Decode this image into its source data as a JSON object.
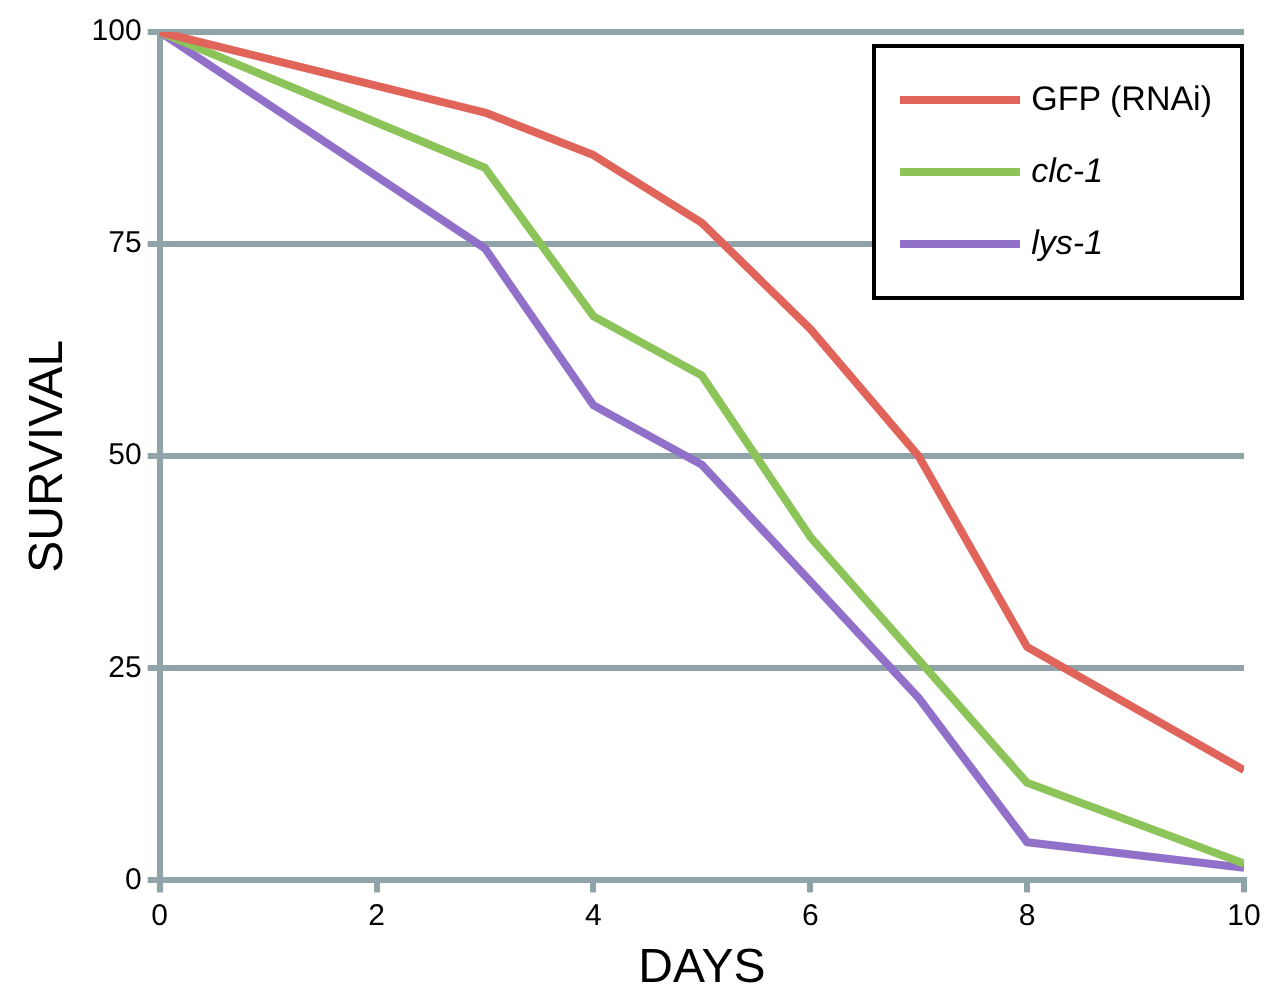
{
  "chart_data": {
    "type": "line",
    "xlabel": "DAYS",
    "ylabel": "SURVIVAL",
    "xlim": [
      0,
      10
    ],
    "xticks": [
      0,
      2,
      4,
      6,
      8,
      10
    ],
    "ylim": [
      0,
      100
    ],
    "yticks": [
      0,
      25,
      50,
      75,
      100
    ],
    "grid": "y",
    "legend": "top right",
    "marker": "none",
    "line_style": "solid",
    "series": [
      {
        "name": "GFP (RNAi)",
        "color": "#e0645a",
        "x": [
          0,
          3,
          4,
          5,
          6,
          7,
          8,
          10
        ],
        "values": [
          100,
          90.5,
          85.5,
          77.5,
          65,
          50,
          27.5,
          13
        ]
      },
      {
        "name": "clc-1",
        "color": "#8cc45a",
        "x": [
          0,
          3,
          4,
          5,
          6,
          8,
          10
        ],
        "values": [
          100,
          84,
          66.5,
          59.5,
          40.5,
          11.5,
          2
        ]
      },
      {
        "name": "lys-1",
        "color": "#9070c8",
        "x": [
          0,
          3,
          4,
          5,
          7,
          8,
          10
        ],
        "values": [
          100,
          74.5,
          56,
          49,
          21.5,
          4.5,
          1.5
        ]
      }
    ]
  }
}
